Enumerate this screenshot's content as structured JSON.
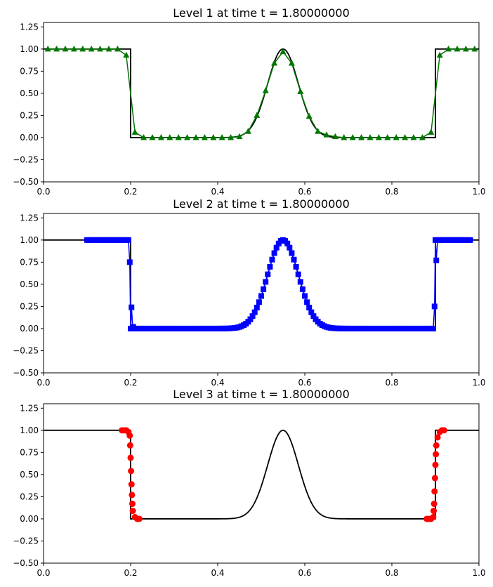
{
  "figure": {
    "panels": [
      {
        "title": "Level 1 at time t =     1.80000000"
      },
      {
        "title": "Level 2 at time t =     1.80000000"
      },
      {
        "title": "Level 3 at time t =     1.80000000"
      }
    ]
  },
  "chart_data": [
    {
      "type": "line",
      "title": "Level 1 at time t =     1.80000000",
      "xlim": [
        0,
        1
      ],
      "ylim": [
        -0.5,
        1.3
      ],
      "xticks": [
        "0.0",
        "0.2",
        "0.4",
        "0.6",
        "0.8",
        "1.0"
      ],
      "yticks": [
        "−0.50",
        "−0.25",
        "0.00",
        "0.25",
        "0.50",
        "0.75",
        "1.00",
        "1.25"
      ],
      "grid": false,
      "reference": {
        "color": "#000000",
        "x_edges": [
          0.2,
          0.9
        ],
        "pulse_center": 0.55,
        "pulse_width": 0.05
      },
      "series": [
        {
          "color": "#007700",
          "marker": "triangle",
          "x": [
            0.01,
            0.03,
            0.05,
            0.07,
            0.09,
            0.11,
            0.13,
            0.15,
            0.17,
            0.19,
            0.21,
            0.23,
            0.25,
            0.27,
            0.29,
            0.31,
            0.33,
            0.35,
            0.37,
            0.39,
            0.41,
            0.43,
            0.45,
            0.47,
            0.49,
            0.51,
            0.53,
            0.55,
            0.57,
            0.59,
            0.61,
            0.63,
            0.65,
            0.67,
            0.69,
            0.71,
            0.73,
            0.75,
            0.77,
            0.79,
            0.81,
            0.83,
            0.85,
            0.87,
            0.89,
            0.91,
            0.93,
            0.95,
            0.97,
            0.99
          ],
          "y": [
            1,
            1,
            1,
            1,
            1,
            1,
            1,
            1,
            1,
            0.93,
            0.06,
            0,
            0,
            0,
            0,
            0,
            0,
            0,
            0,
            0,
            0,
            0,
            0.01,
            0.07,
            0.25,
            0.53,
            0.84,
            0.97,
            0.84,
            0.52,
            0.24,
            0.07,
            0.03,
            0.01,
            0,
            0,
            0,
            0,
            0,
            0,
            0,
            0,
            0,
            0,
            0.06,
            0.93,
            1,
            1,
            1,
            1
          ]
        }
      ]
    },
    {
      "type": "line",
      "title": "Level 2 at time t =     1.80000000",
      "xlim": [
        0,
        1
      ],
      "ylim": [
        -0.5,
        1.3
      ],
      "xticks": [
        "0.0",
        "0.2",
        "0.4",
        "0.6",
        "0.8",
        "1.0"
      ],
      "yticks": [
        "−0.50",
        "−0.25",
        "0.00",
        "0.25",
        "0.50",
        "0.75",
        "1.00",
        "1.25"
      ],
      "grid": false,
      "reference": {
        "color": "#000000",
        "x_edges": [
          0.2,
          0.9
        ],
        "pulse_center": 0.55,
        "pulse_width": 0.05
      },
      "series": [
        {
          "color": "#0000ff",
          "marker": "square",
          "x_range": [
            0.1,
            0.98
          ],
          "spacing": 0.005,
          "jump_values": {
            "left": [
              0.75,
              0.24,
              0.02
            ],
            "right": [
              0.25,
              0.77
            ]
          },
          "sampled_y": [
            [
              0.4,
              0.0
            ],
            [
              0.45,
              0.02
            ],
            [
              0.5,
              0.52
            ],
            [
              0.55,
              0.98
            ],
            [
              0.6,
              0.5
            ],
            [
              0.65,
              0.04
            ],
            [
              0.7,
              0.0
            ]
          ]
        }
      ]
    },
    {
      "type": "scatter",
      "title": "Level 3 at time t =     1.80000000",
      "xlim": [
        0,
        1
      ],
      "ylim": [
        -0.5,
        1.3
      ],
      "xticks": [
        "0.0",
        "0.2",
        "0.4",
        "0.6",
        "0.8",
        "1.0"
      ],
      "yticks": [
        "−0.50",
        "−0.25",
        "0.00",
        "0.25",
        "0.50",
        "0.75",
        "1.00",
        "1.25"
      ],
      "grid": false,
      "reference": {
        "color": "#000000",
        "x_edges": [
          0.2,
          0.9
        ],
        "pulse_center": 0.55,
        "pulse_width": 0.05
      },
      "series": [
        {
          "color": "#ff0000",
          "marker": "circle",
          "x": [
            0.18,
            0.185,
            0.19,
            0.195,
            0.198,
            0.199,
            0.2,
            0.201,
            0.202,
            0.203,
            0.204,
            0.205,
            0.21,
            0.215,
            0.22,
            0.88,
            0.885,
            0.89,
            0.895,
            0.896,
            0.897,
            0.898,
            0.899,
            0.9,
            0.901,
            0.902,
            0.905,
            0.91,
            0.915,
            0.92
          ],
          "y": [
            1,
            1,
            1,
            0.98,
            0.94,
            0.83,
            0.69,
            0.54,
            0.39,
            0.27,
            0.17,
            0.09,
            0.02,
            0,
            0,
            0,
            0,
            0,
            0.02,
            0.09,
            0.17,
            0.31,
            0.46,
            0.61,
            0.73,
            0.83,
            0.92,
            0.98,
            1,
            1
          ]
        }
      ]
    }
  ]
}
